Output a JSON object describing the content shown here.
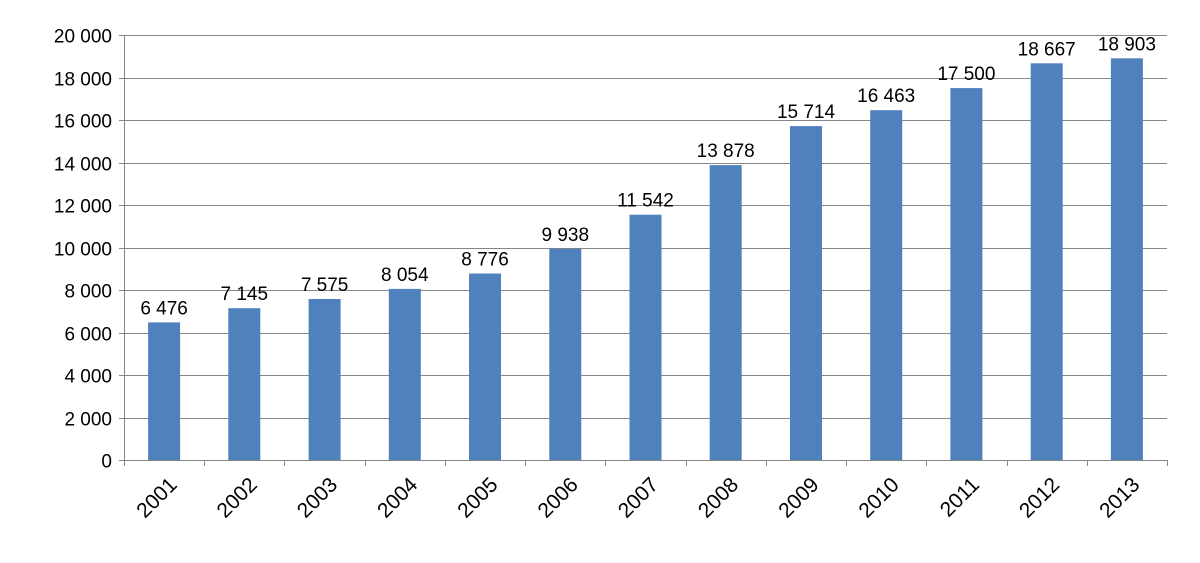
{
  "chart_data": {
    "type": "bar",
    "title": "",
    "xlabel": "",
    "ylabel": "",
    "categories": [
      "2001",
      "2002",
      "2003",
      "2004",
      "2005",
      "2006",
      "2007",
      "2008",
      "2009",
      "2010",
      "2011",
      "2012",
      "2013"
    ],
    "values": [
      6476,
      7145,
      7575,
      8054,
      8776,
      9938,
      11542,
      13878,
      15714,
      16463,
      17500,
      18667,
      18903
    ],
    "data_labels": [
      "6 476",
      "7 145",
      "7 575",
      "8 054",
      "8 776",
      "9 938",
      "11 542",
      "13 878",
      "15 714",
      "16 463",
      "17 500",
      "18 667",
      "18 903"
    ],
    "ylim": [
      0,
      20000
    ],
    "yticks": [
      0,
      2000,
      4000,
      6000,
      8000,
      10000,
      12000,
      14000,
      16000,
      18000,
      20000
    ],
    "ytick_labels": [
      "0",
      "2 000",
      "4 000",
      "6 000",
      "8 000",
      "10 000",
      "12 000",
      "14 000",
      "16 000",
      "18 000",
      "20 000"
    ],
    "grid": true,
    "legend": "none",
    "colors": {
      "bar": "#4F81BD",
      "grid": "#868686",
      "axis": "#868686"
    }
  }
}
